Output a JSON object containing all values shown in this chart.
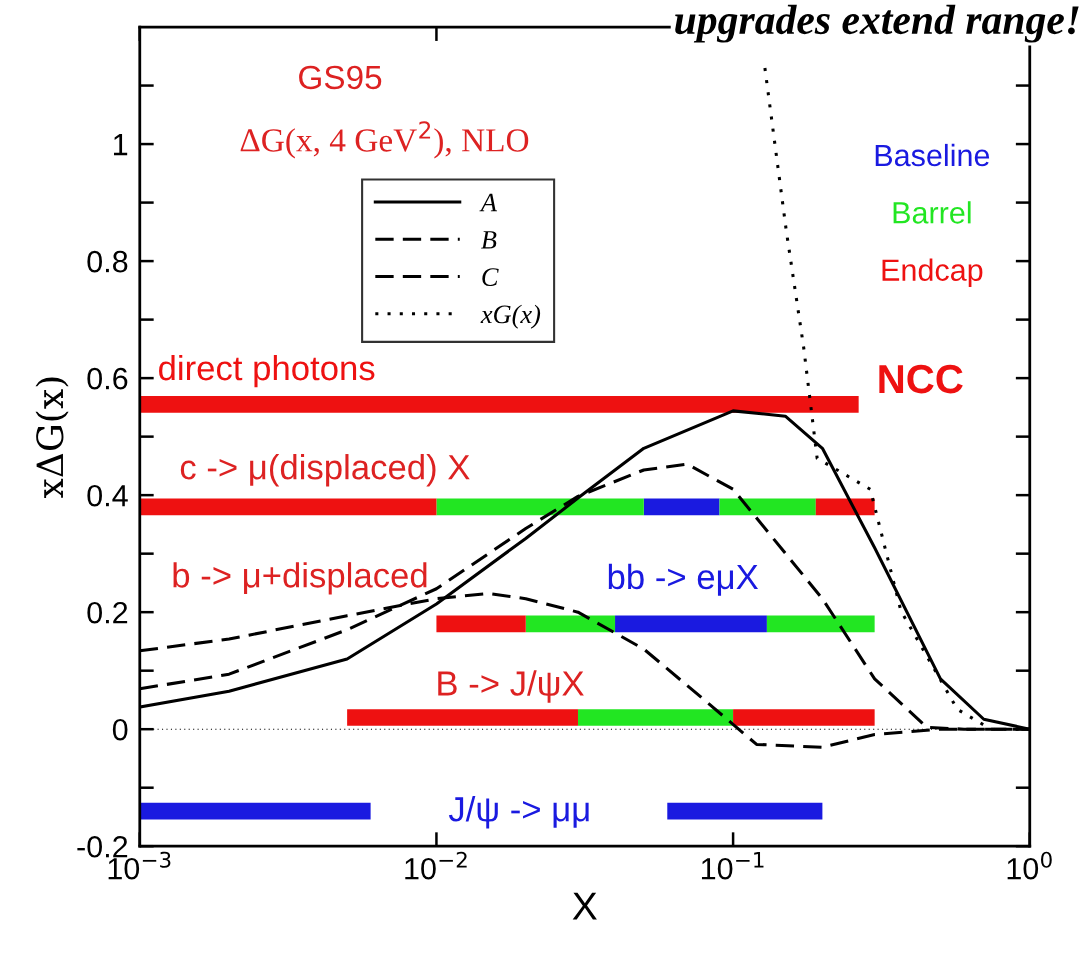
{
  "chart_data": {
    "type": "line",
    "xlabel": "X",
    "ylabel": "xΔG(x)",
    "log": "x",
    "xlim": [
      0.001,
      1
    ],
    "ylim": [
      -0.2,
      1.2
    ],
    "xticks": [
      {
        "value": 0.001,
        "label": "10$^{−3}$"
      },
      {
        "value": 0.01,
        "label": "10$^{−2}$"
      },
      {
        "value": 0.1,
        "label": "10$^{−1}$"
      },
      {
        "value": 1,
        "label": "10$^{0}$"
      }
    ],
    "yticks": [
      -0.2,
      {
        "value": -0.1,
        "label": null
      },
      {
        "value": 0,
        "label": "0"
      },
      {
        "value": 0.1,
        "label": null
      },
      0.2,
      {
        "value": 0.3,
        "label": null
      },
      0.4,
      {
        "value": 0.5,
        "label": null
      },
      0.6,
      {
        "value": 0.7,
        "label": null
      },
      0.8,
      {
        "value": 0.9,
        "label": null
      },
      1,
      {
        "value": 1.1,
        "label": null
      }
    ],
    "grid": false,
    "legend": "top left",
    "ref_lines": [
      {
        "axis": "y",
        "value": 0,
        "label": null,
        "color": "#000000",
        "line_style": "dotted"
      }
    ],
    "series": [
      {
        "name": "A",
        "color": "#000000",
        "line_style": "solid",
        "x": [
          0.001,
          0.002,
          0.005,
          0.01,
          0.02,
          0.03,
          0.05,
          0.1,
          0.15,
          0.2,
          0.3,
          0.5,
          0.7,
          1
        ],
        "values": [
          0.038,
          0.065,
          0.12,
          0.214,
          0.326,
          0.395,
          0.48,
          0.544,
          0.535,
          0.48,
          0.31,
          0.086,
          0.017,
          0.0
        ]
      },
      {
        "name": "B",
        "color": "#000000",
        "line_style": "dashed",
        "x": [
          0.001,
          0.002,
          0.005,
          0.01,
          0.02,
          0.03,
          0.05,
          0.07,
          0.1,
          0.2,
          0.3,
          0.45,
          0.6,
          1
        ],
        "values": [
          0.069,
          0.094,
          0.17,
          0.24,
          0.343,
          0.398,
          0.443,
          0.453,
          0.41,
          0.223,
          0.086,
          0.003,
          0.0,
          0.0
        ]
      },
      {
        "name": "C",
        "color": "#000000",
        "line_style": "dashed",
        "x": [
          0.001,
          0.002,
          0.005,
          0.01,
          0.015,
          0.02,
          0.03,
          0.05,
          0.08,
          0.12,
          0.2,
          0.3,
          0.5,
          1
        ],
        "values": [
          0.134,
          0.154,
          0.194,
          0.223,
          0.232,
          0.223,
          0.2,
          0.137,
          0.05,
          -0.026,
          -0.031,
          -0.009,
          0.0,
          0.0
        ]
      },
      {
        "name": "xG(x)",
        "color": "#000000",
        "line_style": "dotted",
        "x": [
          0.128,
          0.151,
          0.173,
          0.192,
          0.29,
          0.368,
          0.57,
          0.74,
          1
        ],
        "values": [
          1.13,
          0.853,
          0.652,
          0.463,
          0.41,
          0.202,
          0.034,
          0.0,
          0.0
        ]
      },
      {
        "name": "Baseline",
        "color": "#1a1ae0",
        "x": [
          0.05,
          0.09,
          null,
          0.04,
          0.13,
          null,
          0.001,
          0.006,
          null,
          0.06,
          0.2
        ],
        "values": [
          0.38,
          0.38,
          null,
          0.18,
          0.18,
          null,
          -0.14,
          -0.14,
          null,
          -0.14,
          -0.14
        ]
      },
      {
        "name": "Barrel",
        "color": "#22e622",
        "x": [
          0.01,
          0.05,
          null,
          0.09,
          0.19,
          null,
          0.02,
          0.04,
          null,
          0.13,
          0.3,
          null,
          0.03,
          0.1
        ],
        "values": [
          0.38,
          0.38,
          null,
          0.38,
          0.38,
          null,
          0.18,
          0.18,
          null,
          0.18,
          0.18,
          null,
          0.02,
          0.02
        ]
      },
      {
        "name": "Endcap",
        "color": "#ee1111",
        "x": [
          0.001,
          0.265,
          null,
          0.001,
          0.01,
          null,
          0.19,
          0.3,
          null,
          0.01,
          0.02,
          null,
          0.005,
          0.03,
          null,
          0.1,
          0.3
        ],
        "values": [
          0.555,
          0.555,
          null,
          0.38,
          0.38,
          null,
          0.38,
          0.38,
          null,
          0.18,
          0.18,
          null,
          0.02,
          0.02,
          null,
          0.02,
          0.02
        ]
      }
    ],
    "annotations": [
      "upgrades extend range!",
      "GS95",
      "ΔG(x, 4 GeV$^{2}$), NLO",
      "direct photons",
      "NCC",
      "c -> μ(displaced) X",
      "b -> μ+displaced",
      "bb -> eμX",
      "B -> J/ψX",
      "J/ψ -> μμ"
    ]
  }
}
